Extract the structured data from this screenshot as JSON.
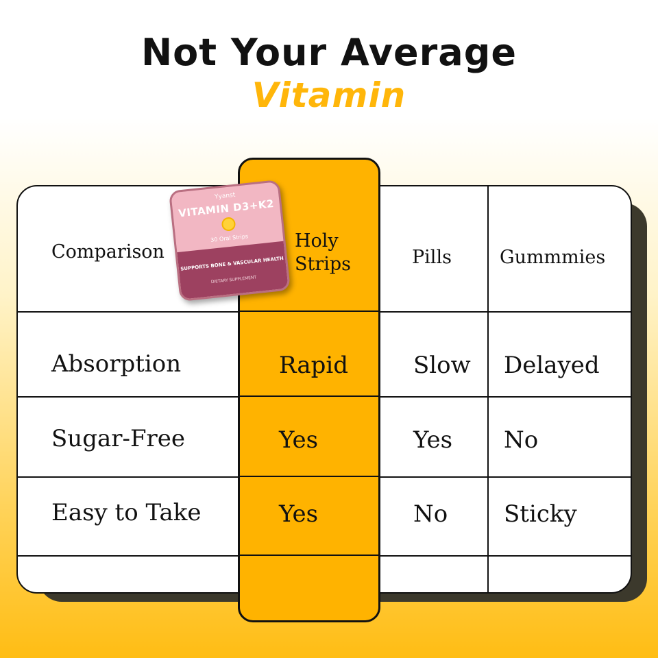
{
  "headline": {
    "line1": "Not Your Average",
    "line2": "Vitamin"
  },
  "colors": {
    "accent": "#ffb300",
    "ink": "#111111",
    "shadow": "#3c392c"
  },
  "product": {
    "icon": "vitamin-strip-tin-icon",
    "brand": "Yyanst",
    "name": "VITAMIN D3+K2",
    "count": "30 Oral Strips",
    "claim": "SUPPORTS BONE & VASCULAR HEALTH",
    "sub": "DIETARY SUPPLEMENT"
  },
  "table": {
    "headers": {
      "comparison": "Comparison",
      "holy_line1": "Holy",
      "holy_line2": "Strips",
      "pills": "Pills",
      "gummies": "Gummmies"
    },
    "rows": [
      {
        "label": "Absorption",
        "holy": "Rapid",
        "pills": "Slow",
        "gummies": "Delayed"
      },
      {
        "label": "Sugar-Free",
        "holy": "Yes",
        "pills": "Yes",
        "gummies": "No"
      },
      {
        "label": "Easy to Take",
        "holy": "Yes",
        "pills": "No",
        "gummies": "Sticky"
      }
    ]
  }
}
